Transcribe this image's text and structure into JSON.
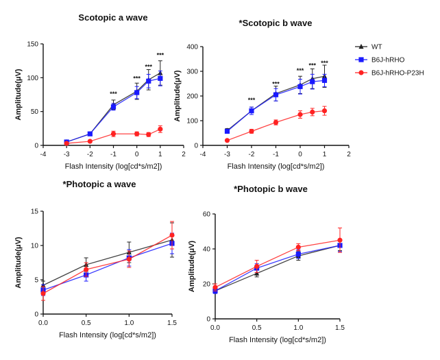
{
  "figure": {
    "legend": {
      "placement": "top-right",
      "entries": [
        {
          "name": "WT",
          "color": "#222222",
          "marker": "triangle"
        },
        {
          "name": "B6J-hRHO",
          "color": "#1a1aff",
          "marker": "square"
        },
        {
          "name": "B6J-hRHO-P23H",
          "color": "#ff2222",
          "marker": "circle"
        }
      ]
    }
  },
  "chart_data": [
    {
      "type": "line",
      "title": "Scotopic a wave",
      "xlabel": "Flash Intensity (log[cd*s/m2])",
      "ylabel": "Amplitude(μV)",
      "xlim": [
        -4,
        2
      ],
      "ylim": [
        0,
        150
      ],
      "xticks": [
        "-4",
        "-3",
        "-2",
        "-1",
        "0",
        "1",
        "2"
      ],
      "yticks": [
        "0",
        "50",
        "100",
        "150"
      ],
      "series": [
        {
          "name": "WT",
          "color": "#222222",
          "marker": "triangle",
          "x": [
            -3,
            -2,
            -1,
            0,
            0.5,
            1
          ],
          "y": [
            5,
            17,
            60,
            80,
            97,
            107
          ],
          "err": [
            1,
            2,
            7,
            12,
            15,
            18
          ]
        },
        {
          "name": "B6J-hRHO",
          "color": "#1a1aff",
          "marker": "square",
          "x": [
            -3,
            -2,
            -1,
            0,
            0.5,
            1
          ],
          "y": [
            5,
            17,
            57,
            78,
            95,
            99
          ],
          "err": [
            1,
            2,
            5,
            9,
            10,
            11
          ]
        },
        {
          "name": "B6J-hRHO-P23H",
          "color": "#ff2222",
          "marker": "circle",
          "x": [
            -3,
            -2,
            -1,
            0,
            0.5,
            1
          ],
          "y": [
            3,
            6,
            17,
            17,
            16,
            24
          ],
          "err": [
            1,
            1,
            4,
            3,
            3,
            5
          ]
        }
      ],
      "annotations": [
        {
          "x": -1,
          "y": 73,
          "text": "***"
        },
        {
          "x": 0,
          "y": 96,
          "text": "***"
        },
        {
          "x": 0.5,
          "y": 113,
          "text": "***"
        },
        {
          "x": 1,
          "y": 130,
          "text": "***"
        }
      ]
    },
    {
      "type": "line",
      "title": "*Scotopic b wave",
      "xlabel": "Flash Intensity (log[cd*s/m2])",
      "ylabel": "Amplitude(μV)",
      "xlim": [
        -4,
        2
      ],
      "ylim": [
        0,
        400
      ],
      "xticks": [
        "-4",
        "-3",
        "-2",
        "-1",
        "0",
        "1",
        "2"
      ],
      "yticks": [
        "0",
        "100",
        "200",
        "300",
        "400"
      ],
      "series": [
        {
          "name": "WT",
          "color": "#222222",
          "marker": "triangle",
          "x": [
            -3,
            -2,
            -1,
            0,
            0.5,
            1
          ],
          "y": [
            60,
            140,
            210,
            245,
            270,
            280
          ],
          "err": [
            8,
            15,
            30,
            35,
            40,
            45
          ]
        },
        {
          "name": "B6J-hRHO",
          "color": "#1a1aff",
          "marker": "square",
          "x": [
            -3,
            -2,
            -1,
            0,
            0.5,
            1
          ],
          "y": [
            57,
            140,
            205,
            238,
            258,
            263
          ],
          "err": [
            8,
            15,
            25,
            30,
            30,
            25
          ]
        },
        {
          "name": "B6J-hRHO-P23H",
          "color": "#ff2222",
          "marker": "circle",
          "x": [
            -3,
            -2,
            -1,
            0,
            0.5,
            1
          ],
          "y": [
            20,
            57,
            93,
            125,
            135,
            140
          ],
          "err": [
            3,
            8,
            10,
            15,
            15,
            18
          ]
        }
      ],
      "annotations": [
        {
          "x": -2,
          "y": 175,
          "text": "***"
        },
        {
          "x": -1,
          "y": 240,
          "text": "***"
        },
        {
          "x": 0,
          "y": 295,
          "text": "***"
        },
        {
          "x": 0.5,
          "y": 315,
          "text": "***"
        },
        {
          "x": 1,
          "y": 325,
          "text": "***"
        }
      ]
    },
    {
      "type": "line",
      "title": "*Photopic a wave",
      "xlabel": "Flash Intensity (log[cd*s/m2])",
      "ylabel": "Amplitude(μV)",
      "xlim": [
        0,
        1.5
      ],
      "ylim": [
        0,
        15
      ],
      "xticks": [
        "0.0",
        "0.5",
        "1.0",
        "1.5"
      ],
      "yticks": [
        "0",
        "5",
        "10",
        "15"
      ],
      "series": [
        {
          "name": "WT",
          "color": "#222222",
          "marker": "triangle",
          "x": [
            0,
            0.5,
            1,
            1.5
          ],
          "y": [
            4.2,
            7.2,
            9.0,
            10.8
          ],
          "err": [
            0.6,
            1.0,
            1.5,
            2.5
          ]
        },
        {
          "name": "B6J-hRHO",
          "color": "#1a1aff",
          "marker": "square",
          "x": [
            0,
            0.5,
            1,
            1.5
          ],
          "y": [
            3.5,
            5.7,
            8.2,
            10.3
          ],
          "err": [
            0.8,
            0.9,
            1.2,
            1.5
          ]
        },
        {
          "name": "B6J-hRHO-P23H",
          "color": "#ff2222",
          "marker": "circle",
          "x": [
            0,
            0.5,
            1,
            1.5
          ],
          "y": [
            3.0,
            6.5,
            8.0,
            11.5
          ],
          "err": [
            1.0,
            1.0,
            1.2,
            2.0
          ]
        }
      ],
      "annotations": []
    },
    {
      "type": "line",
      "title": "*Photopic b wave",
      "xlabel": "Flash Intensity (log[cd*s/m2])",
      "ylabel": "Amplitude(μV)",
      "xlim": [
        0,
        1.5
      ],
      "ylim": [
        0,
        60
      ],
      "xticks": [
        "0.0",
        "0.5",
        "1.0",
        "1.5"
      ],
      "yticks": [
        "0",
        "20",
        "40",
        "60"
      ],
      "series": [
        {
          "name": "WT",
          "color": "#222222",
          "marker": "triangle",
          "x": [
            0,
            0.5,
            1,
            1.5
          ],
          "y": [
            16,
            26,
            36,
            42
          ],
          "err": [
            1.5,
            2.0,
            2.5,
            3.0
          ]
        },
        {
          "name": "B6J-hRHO",
          "color": "#1a1aff",
          "marker": "square",
          "x": [
            0,
            0.5,
            1,
            1.5
          ],
          "y": [
            16,
            29,
            37,
            42
          ],
          "err": [
            1.5,
            2.5,
            2.5,
            3.5
          ]
        },
        {
          "name": "B6J-hRHO-P23H",
          "color": "#ff2222",
          "marker": "circle",
          "x": [
            0,
            0.5,
            1,
            1.5
          ],
          "y": [
            18,
            30,
            41,
            45
          ],
          "err": [
            2.0,
            3.5,
            2.0,
            7.0
          ]
        }
      ],
      "annotations": []
    }
  ]
}
